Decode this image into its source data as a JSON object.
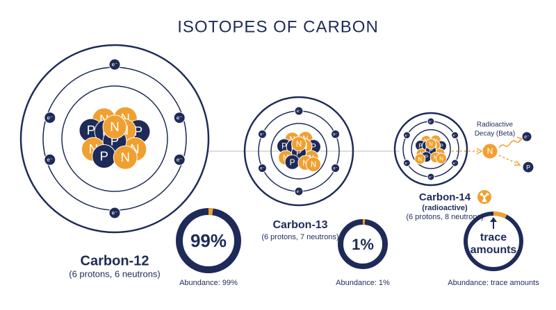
{
  "title": "ISOTOPES OF CARBON",
  "particles": {
    "proton": "P",
    "neutron": "N",
    "electron": "e⁻"
  },
  "isotopes": [
    {
      "name": "Carbon-12",
      "composition": "(6 protons, 6 neutrons)",
      "abundance_label": "99%",
      "caption": "Abundance: 99%"
    },
    {
      "name": "Carbon-13",
      "composition": "(6 protons, 7 neutrons)",
      "abundance_label": "1%",
      "caption": "Abundance: 1%"
    },
    {
      "name": "Carbon-14",
      "note": "(radioactive)",
      "composition": "(6 protons, 8 neutrons)",
      "abundance_label": [
        "trace",
        "amounts"
      ],
      "caption": "Abundance: trace amounts"
    }
  ],
  "decay": {
    "label": [
      "Radioactive",
      "Decay (Beta)"
    ]
  }
}
